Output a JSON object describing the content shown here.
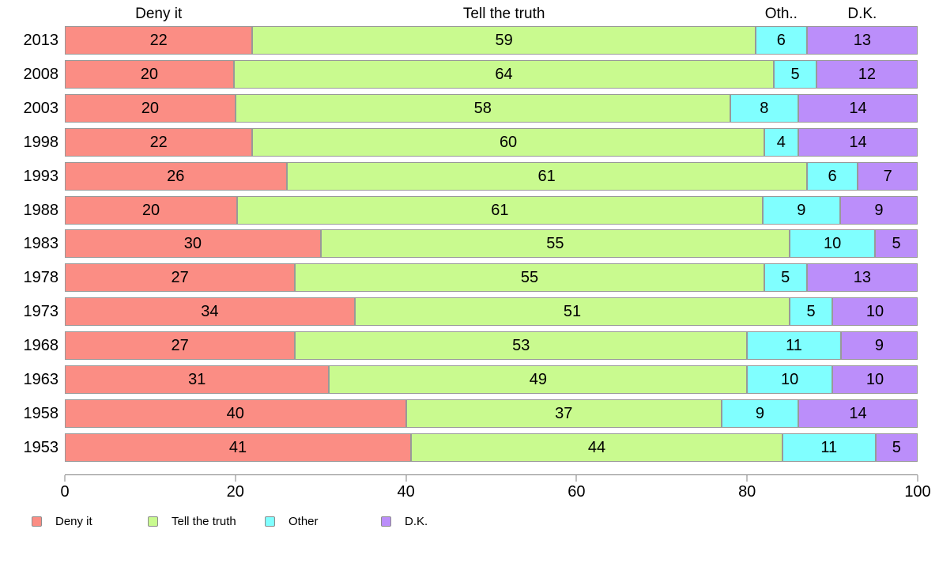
{
  "chart_data": {
    "type": "bar",
    "orientation": "horizontal",
    "stacked": true,
    "title": "",
    "xlabel": "",
    "ylabel": "",
    "categories": [
      "2013",
      "2008",
      "2003",
      "1998",
      "1993",
      "1988",
      "1983",
      "1978",
      "1973",
      "1968",
      "1963",
      "1958",
      "1953"
    ],
    "series": [
      {
        "name": "Deny it",
        "color": "#FB8D84",
        "values": [
          22,
          20,
          20,
          22,
          26,
          20,
          30,
          27,
          34,
          27,
          31,
          40,
          41
        ]
      },
      {
        "name": "Tell the truth",
        "color": "#C9FA8F",
        "values": [
          59,
          64,
          58,
          60,
          61,
          61,
          55,
          55,
          51,
          53,
          49,
          37,
          44
        ]
      },
      {
        "name": "Other",
        "color": "#80FFFF",
        "values": [
          6,
          5,
          8,
          4,
          6,
          9,
          10,
          5,
          5,
          11,
          10,
          9,
          11
        ]
      },
      {
        "name": "D.K.",
        "color": "#BB8EFA",
        "values": [
          13,
          12,
          14,
          14,
          7,
          9,
          5,
          13,
          10,
          9,
          10,
          14,
          5
        ]
      }
    ],
    "column_headers": [
      "Deny it",
      "Tell the truth",
      "Oth..",
      "D.K."
    ],
    "value_labels_shown": true,
    "x_ticks": [
      0,
      20,
      40,
      60,
      80,
      100
    ],
    "xlim": [
      0,
      100
    ],
    "grid": false,
    "legend": {
      "position": "bottom",
      "entries": [
        {
          "label": "Deny it",
          "color": "#FB8D84"
        },
        {
          "label": "Tell the truth",
          "color": "#C9FA8F"
        },
        {
          "label": "Other",
          "color": "#80FFFF"
        },
        {
          "label": "D.K.",
          "color": "#BB8EFA"
        }
      ]
    }
  },
  "colors": {
    "background": "#ffffff",
    "text": "#000000",
    "axis": "#808080",
    "segment_border": "#999999"
  }
}
